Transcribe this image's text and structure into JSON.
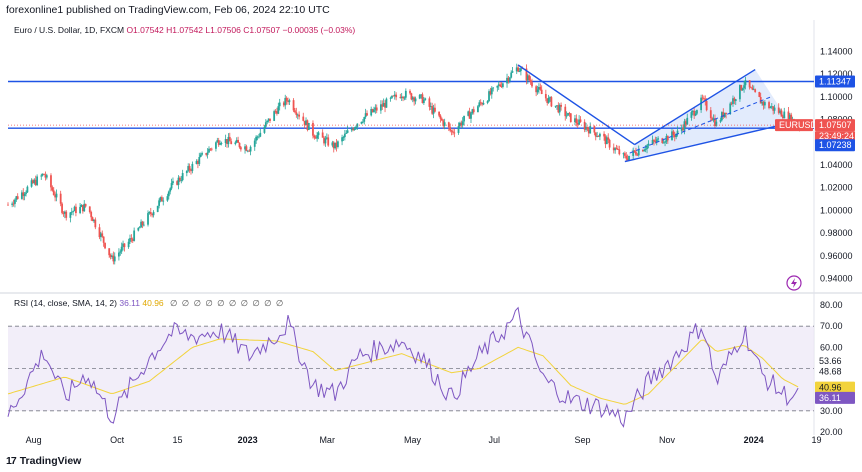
{
  "header": {
    "publisher": "forexonline1 published on TradingView.com, Feb 06, 2024 22:10 UTC"
  },
  "legend": {
    "symbol": "Euro / U.S. Dollar, 1D, FXCM",
    "open": "O1.07542",
    "high": "H1.07542",
    "low": "L1.07506",
    "close": "C1.07507",
    "change": "−0.00035 (−0.03%)"
  },
  "rsi_legend": {
    "label": "RSI (14, close, SMA, 14, 2)",
    "rsi_value": "36.11",
    "sma_value": "40.96",
    "hidden": "∅ ∅ ∅ ∅ ∅ ∅ ∅ ∅ ∅ ∅"
  },
  "footer": {
    "brand": "TradingView",
    "logo": "17"
  },
  "price_labels": {
    "level_top": "1.11347",
    "symbol_tag": "EURUSD",
    "last_price": "1.07507",
    "countdown": "23:49:24",
    "level_bottom": "1.07238"
  },
  "rsi_labels": {
    "upper": "53.66",
    "mid": "48.68",
    "sma": "40.96",
    "rsi": "36.11"
  },
  "colors": {
    "up": "#26a69a",
    "down": "#ef5350",
    "line": "#1e53e5",
    "channel_fill": "#dbe6fb",
    "rsi": "#7e57c2",
    "rsi_sma": "#f2d33c",
    "rsi_band": "#ede7f6",
    "accent": "#2962ff"
  },
  "icons": {
    "flash": "flash-icon",
    "logo": "tradingview-logo-icon"
  },
  "chart_data": [
    {
      "type": "candlestick",
      "title": "Euro / U.S. Dollar, 1D, FXCM",
      "x_ticks": [
        "Aug",
        "Oct",
        "15",
        "2023",
        "Mar",
        "May",
        "Jul",
        "Sep",
        "Nov",
        "2024",
        "19"
      ],
      "y_ticks": [
        0.94,
        0.96,
        0.98,
        1.0,
        1.02,
        1.04,
        1.06,
        1.08,
        1.1,
        1.12,
        1.14
      ],
      "y_tick_labels": [
        "0.94000",
        "0.96000",
        "0.98000",
        "1.00000",
        "1.02000",
        "1.04000",
        "1.06000",
        "1.08000",
        "1.10000",
        "1.12000",
        "1.14000"
      ],
      "ylim": [
        0.93,
        1.15
      ],
      "horizontal_levels": [
        1.11347,
        1.07238
      ],
      "last_close": 1.07507,
      "price_path": [
        {
          "date": "2022-07-15",
          "close": 1.005
        },
        {
          "date": "2022-08-10",
          "close": 1.032
        },
        {
          "date": "2022-08-25",
          "close": 0.997
        },
        {
          "date": "2022-09-10",
          "close": 1.004
        },
        {
          "date": "2022-09-28",
          "close": 0.957
        },
        {
          "date": "2022-10-10",
          "close": 0.972
        },
        {
          "date": "2022-10-25",
          "close": 0.996
        },
        {
          "date": "2022-11-10",
          "close": 1.021
        },
        {
          "date": "2022-11-25",
          "close": 1.039
        },
        {
          "date": "2022-12-15",
          "close": 1.063
        },
        {
          "date": "2023-01-05",
          "close": 1.055
        },
        {
          "date": "2023-01-25",
          "close": 1.089
        },
        {
          "date": "2023-02-02",
          "close": 1.098
        },
        {
          "date": "2023-02-20",
          "close": 1.068
        },
        {
          "date": "2023-03-08",
          "close": 1.056
        },
        {
          "date": "2023-03-25",
          "close": 1.079
        },
        {
          "date": "2023-04-25",
          "close": 1.103
        },
        {
          "date": "2023-05-10",
          "close": 1.098
        },
        {
          "date": "2023-05-31",
          "close": 1.069
        },
        {
          "date": "2023-06-20",
          "close": 1.093
        },
        {
          "date": "2023-07-18",
          "close": 1.126
        },
        {
          "date": "2023-08-05",
          "close": 1.101
        },
        {
          "date": "2023-08-25",
          "close": 1.081
        },
        {
          "date": "2023-09-15",
          "close": 1.066
        },
        {
          "date": "2023-10-03",
          "close": 1.046
        },
        {
          "date": "2023-10-20",
          "close": 1.058
        },
        {
          "date": "2023-11-10",
          "close": 1.068
        },
        {
          "date": "2023-11-28",
          "close": 1.097
        },
        {
          "date": "2023-12-08",
          "close": 1.076
        },
        {
          "date": "2023-12-28",
          "close": 1.112
        },
        {
          "date": "2024-01-10",
          "close": 1.095
        },
        {
          "date": "2024-01-25",
          "close": 1.085
        },
        {
          "date": "2024-02-06",
          "close": 1.075
        }
      ],
      "drawings": {
        "downtrend_line": [
          {
            "date": "2023-07-18",
            "price": 1.128
          },
          {
            "date": "2023-10-10",
            "price": 1.058
          }
        ],
        "channel_upper": [
          {
            "date": "2023-10-10",
            "price": 1.058
          },
          {
            "date": "2024-01-05",
            "price": 1.124
          }
        ],
        "channel_lower": [
          {
            "date": "2023-10-03",
            "price": 1.043
          },
          {
            "date": "2024-01-30",
            "price": 1.077
          }
        ]
      }
    },
    {
      "type": "line",
      "title": "RSI (14, close, SMA, 14, 2)",
      "y_ticks": [
        20,
        30,
        40,
        50,
        60,
        70,
        80
      ],
      "y_tick_labels": [
        "20.00",
        "30.00",
        "40.00",
        "50.00",
        "60.00",
        "70.00",
        "80.00"
      ],
      "ylim": [
        20,
        80
      ],
      "bands": [
        30,
        50,
        70
      ],
      "series": [
        {
          "name": "RSI",
          "values": [
            {
              "date": "2022-07-15",
              "value": 28
            },
            {
              "date": "2022-08-10",
              "value": 58
            },
            {
              "date": "2022-08-25",
              "value": 36
            },
            {
              "date": "2022-09-10",
              "value": 48
            },
            {
              "date": "2022-09-28",
              "value": 27
            },
            {
              "date": "2022-10-10",
              "value": 40
            },
            {
              "date": "2022-10-25",
              "value": 55
            },
            {
              "date": "2022-11-10",
              "value": 67
            },
            {
              "date": "2022-11-25",
              "value": 65
            },
            {
              "date": "2022-12-15",
              "value": 68
            },
            {
              "date": "2023-01-05",
              "value": 56
            },
            {
              "date": "2023-01-25",
              "value": 66
            },
            {
              "date": "2023-02-02",
              "value": 71
            },
            {
              "date": "2023-02-20",
              "value": 42
            },
            {
              "date": "2023-03-08",
              "value": 38
            },
            {
              "date": "2023-03-25",
              "value": 56
            },
            {
              "date": "2023-04-25",
              "value": 63
            },
            {
              "date": "2023-05-10",
              "value": 55
            },
            {
              "date": "2023-05-31",
              "value": 36
            },
            {
              "date": "2023-06-20",
              "value": 56
            },
            {
              "date": "2023-07-18",
              "value": 75
            },
            {
              "date": "2023-08-05",
              "value": 45
            },
            {
              "date": "2023-08-25",
              "value": 35
            },
            {
              "date": "2023-09-15",
              "value": 32
            },
            {
              "date": "2023-10-03",
              "value": 26
            },
            {
              "date": "2023-10-20",
              "value": 44
            },
            {
              "date": "2023-11-10",
              "value": 57
            },
            {
              "date": "2023-11-28",
              "value": 71
            },
            {
              "date": "2023-12-08",
              "value": 43
            },
            {
              "date": "2023-12-28",
              "value": 68
            },
            {
              "date": "2024-01-10",
              "value": 47
            },
            {
              "date": "2024-01-25",
              "value": 38
            },
            {
              "date": "2024-02-06",
              "value": 36.11
            }
          ]
        },
        {
          "name": "SMA",
          "values": [
            {
              "date": "2022-07-15",
              "value": 38
            },
            {
              "date": "2022-08-25",
              "value": 46
            },
            {
              "date": "2022-09-28",
              "value": 38
            },
            {
              "date": "2022-10-25",
              "value": 44
            },
            {
              "date": "2022-11-25",
              "value": 60
            },
            {
              "date": "2022-12-15",
              "value": 64
            },
            {
              "date": "2023-01-25",
              "value": 63
            },
            {
              "date": "2023-02-20",
              "value": 58
            },
            {
              "date": "2023-03-08",
              "value": 49
            },
            {
              "date": "2023-04-25",
              "value": 57
            },
            {
              "date": "2023-05-31",
              "value": 48
            },
            {
              "date": "2023-06-20",
              "value": 50
            },
            {
              "date": "2023-07-18",
              "value": 60
            },
            {
              "date": "2023-08-05",
              "value": 56
            },
            {
              "date": "2023-08-25",
              "value": 42
            },
            {
              "date": "2023-09-15",
              "value": 36
            },
            {
              "date": "2023-10-03",
              "value": 33
            },
            {
              "date": "2023-10-20",
              "value": 38
            },
            {
              "date": "2023-11-10",
              "value": 52
            },
            {
              "date": "2023-11-28",
              "value": 64
            },
            {
              "date": "2023-12-08",
              "value": 58
            },
            {
              "date": "2023-12-28",
              "value": 61
            },
            {
              "date": "2024-01-10",
              "value": 55
            },
            {
              "date": "2024-01-25",
              "value": 45
            },
            {
              "date": "2024-02-06",
              "value": 40.96
            }
          ]
        }
      ]
    }
  ]
}
